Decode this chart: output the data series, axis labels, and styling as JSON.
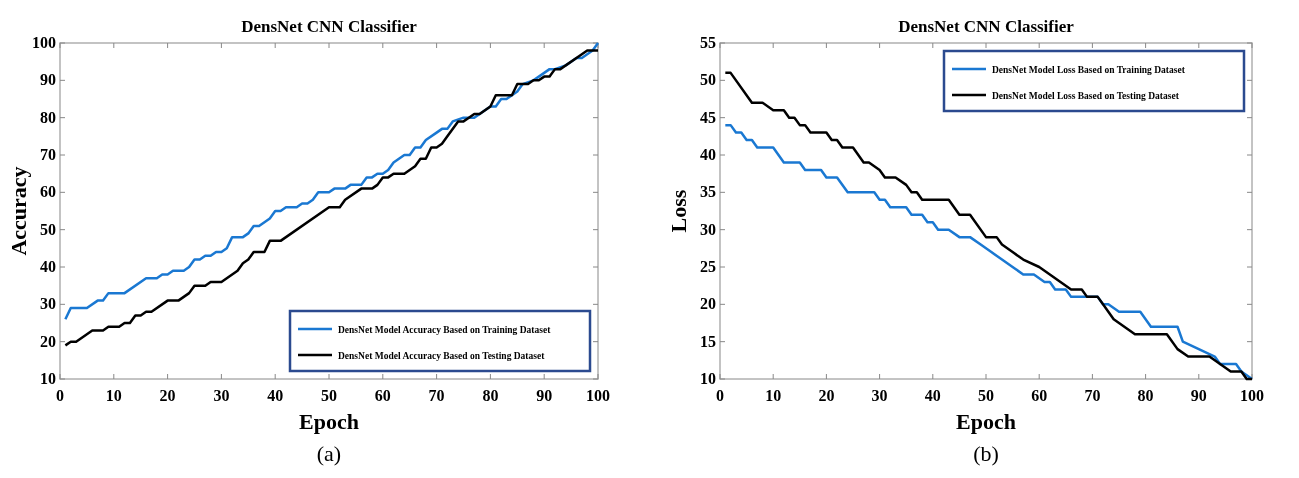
{
  "chart_data": [
    {
      "type": "line",
      "title": "DensNet CNN Classifier",
      "xlabel": "Epoch",
      "ylabel": "Accuracy",
      "xlim": [
        0,
        100
      ],
      "ylim": [
        10,
        100
      ],
      "xticks": [
        0,
        10,
        20,
        30,
        40,
        50,
        60,
        70,
        80,
        90,
        100
      ],
      "yticks": [
        10,
        20,
        30,
        40,
        50,
        60,
        70,
        80,
        90,
        100
      ],
      "grid": false,
      "legend": "bottom right",
      "line_style": "solid",
      "annotations": [
        "(a)"
      ],
      "series": [
        {
          "name": "DensNet Model Accuracy Based on Training Dataset",
          "color": "#1a78d2",
          "x": [
            1,
            2,
            5,
            7,
            8,
            9,
            12,
            16,
            18,
            19,
            20,
            21,
            23,
            24,
            25,
            26,
            27,
            28,
            29,
            30,
            31,
            32,
            34,
            35,
            36,
            37,
            39,
            40,
            41,
            42,
            44,
            45,
            46,
            47,
            48,
            50,
            51,
            53,
            54,
            56,
            57,
            58,
            59,
            60,
            61,
            62,
            63,
            64,
            65,
            66,
            67,
            68,
            70,
            71,
            72,
            73,
            75,
            77,
            79,
            80,
            81,
            82,
            83,
            84,
            85,
            86,
            88,
            89,
            91,
            92,
            94,
            95,
            96,
            97,
            98,
            99,
            100
          ],
          "values": [
            26,
            29,
            29,
            31,
            31,
            33,
            33,
            37,
            37,
            38,
            38,
            39,
            39,
            40,
            42,
            42,
            43,
            43,
            44,
            44,
            45,
            48,
            48,
            49,
            51,
            51,
            53,
            55,
            55,
            56,
            56,
            57,
            57,
            58,
            60,
            60,
            61,
            61,
            62,
            62,
            64,
            64,
            65,
            65,
            66,
            68,
            69,
            70,
            70,
            72,
            72,
            74,
            76,
            77,
            77,
            79,
            80,
            80,
            82,
            83,
            83,
            85,
            85,
            86,
            87,
            89,
            90,
            91,
            93,
            93,
            94,
            95,
            96,
            96,
            97,
            98,
            100
          ]
        },
        {
          "name": "DensNet Model Accuracy Based on Testing Dataset",
          "color": "#000000",
          "x": [
            1,
            2,
            3,
            4,
            6,
            8,
            9,
            11,
            12,
            13,
            14,
            15,
            16,
            17,
            20,
            22,
            24,
            25,
            27,
            28,
            30,
            33,
            34,
            35,
            36,
            38,
            39,
            41,
            50,
            52,
            53,
            56,
            58,
            59,
            60,
            61,
            62,
            64,
            65,
            66,
            67,
            68,
            69,
            70,
            71,
            72,
            74,
            75,
            76,
            77,
            78,
            79,
            80,
            81,
            83,
            84,
            85,
            87,
            88,
            89,
            90,
            91,
            92,
            93,
            97,
            98,
            100
          ],
          "values": [
            19,
            20,
            20,
            21,
            23,
            23,
            24,
            24,
            25,
            25,
            27,
            27,
            28,
            28,
            31,
            31,
            33,
            35,
            35,
            36,
            36,
            39,
            41,
            42,
            44,
            44,
            47,
            47,
            56,
            56,
            58,
            61,
            61,
            62,
            64,
            64,
            65,
            65,
            66,
            67,
            69,
            69,
            72,
            72,
            73,
            75,
            79,
            79,
            80,
            81,
            81,
            82,
            83,
            86,
            86,
            86,
            89,
            89,
            90,
            90,
            91,
            91,
            93,
            93,
            97,
            98,
            98
          ]
        }
      ]
    },
    {
      "type": "line",
      "title": "DensNet CNN Classifier",
      "xlabel": "Epoch",
      "ylabel": "Loss",
      "xlim": [
        0,
        100
      ],
      "ylim": [
        10,
        55
      ],
      "xticks": [
        0,
        10,
        20,
        30,
        40,
        50,
        60,
        70,
        80,
        90,
        100
      ],
      "yticks": [
        10,
        15,
        20,
        25,
        30,
        35,
        40,
        45,
        50,
        55
      ],
      "grid": false,
      "legend": "top right",
      "line_style": "solid",
      "annotations": [
        "(b)"
      ],
      "series": [
        {
          "name": "DensNet Model Loss Based on Training Dataset",
          "color": "#1a78d2",
          "x": [
            1,
            2,
            3,
            4,
            5,
            6,
            7,
            10,
            12,
            15,
            16,
            19,
            20,
            22,
            24,
            29,
            30,
            31,
            32,
            35,
            36,
            38,
            39,
            40,
            41,
            43,
            45,
            47,
            49,
            51,
            53,
            55,
            57,
            59,
            61,
            62,
            63,
            65,
            66,
            67,
            71,
            72,
            73,
            75,
            79,
            81,
            86,
            87,
            90,
            93,
            94,
            97,
            98,
            100
          ],
          "values": [
            44,
            44,
            43,
            43,
            42,
            42,
            41,
            41,
            39,
            39,
            38,
            38,
            37,
            37,
            35,
            35,
            34,
            34,
            33,
            33,
            32,
            32,
            31,
            31,
            30,
            30,
            29,
            29,
            28,
            27,
            26,
            25,
            24,
            24,
            23,
            23,
            22,
            22,
            21,
            21,
            21,
            20,
            20,
            19,
            19,
            17,
            17,
            15,
            14,
            13,
            12,
            12,
            11,
            10
          ]
        },
        {
          "name": "DensNet Model Loss Based on Testing Dataset",
          "color": "#000000",
          "x": [
            1,
            2,
            6,
            8,
            10,
            12,
            13,
            14,
            15,
            16,
            17,
            20,
            21,
            22,
            23,
            25,
            27,
            28,
            30,
            31,
            33,
            35,
            36,
            37,
            38,
            43,
            45,
            47,
            50,
            52,
            53,
            55,
            57,
            60,
            62,
            64,
            66,
            68,
            69,
            71,
            73,
            74,
            76,
            78,
            84,
            86,
            88,
            92,
            94,
            96,
            98,
            99,
            100
          ],
          "values": [
            51,
            51,
            47,
            47,
            46,
            46,
            45,
            45,
            44,
            44,
            43,
            43,
            42,
            42,
            41,
            41,
            39,
            39,
            38,
            37,
            37,
            36,
            35,
            35,
            34,
            34,
            32,
            32,
            29,
            29,
            28,
            27,
            26,
            25,
            24,
            23,
            22,
            22,
            21,
            21,
            19,
            18,
            17,
            16,
            16,
            14,
            13,
            13,
            12,
            11,
            11,
            10,
            10
          ]
        }
      ]
    }
  ]
}
